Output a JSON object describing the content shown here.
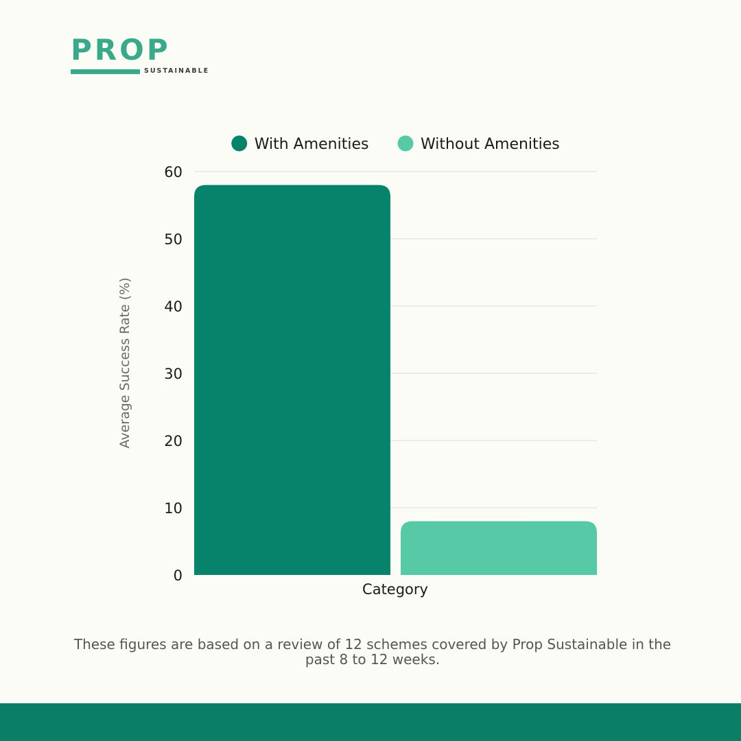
{
  "brand": {
    "name": "PROP",
    "tagline": "SUSTAINABLE",
    "color": "#3aa98a"
  },
  "chart_data": {
    "type": "bar",
    "title": "",
    "categories": [
      "Category"
    ],
    "series": [
      {
        "name": "With Amenities",
        "values": [
          58
        ],
        "color": "#06836a"
      },
      {
        "name": "Without Amenities",
        "values": [
          8
        ],
        "color": "#57c9a6"
      }
    ],
    "xlabel": "Category",
    "ylabel": "Average Success Rate (%)",
    "ylim": [
      0,
      60
    ],
    "yticks": [
      0,
      10,
      20,
      30,
      40,
      50,
      60
    ],
    "grid": true,
    "legend": "top-center"
  },
  "footnote": "These figures are based on a review of 12 schemes covered by Prop Sustainable in the past 8 to 12 weeks.",
  "footer_color": "#0b7f66"
}
